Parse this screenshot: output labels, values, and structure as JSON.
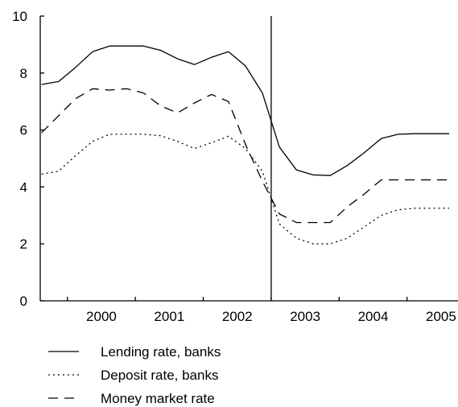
{
  "chart_data": {
    "type": "line",
    "title": "",
    "xlabel": "",
    "ylabel": "",
    "ylim": [
      0,
      10
    ],
    "yticks": [
      0,
      2,
      4,
      6,
      8,
      10
    ],
    "xlim": [
      1999.6,
      2005.75
    ],
    "xtick_labels": [
      "2000",
      "2001",
      "2002",
      "2003",
      "2004",
      "2005"
    ],
    "grid": false,
    "legend_position": "bottom",
    "reference_line_x": 2003.0,
    "series": [
      {
        "name": "Lending rate, banks",
        "style": "solid",
        "x": [
          1999.62,
          1999.87,
          2000.12,
          2000.37,
          2000.62,
          2000.87,
          2001.12,
          2001.37,
          2001.62,
          2001.87,
          2002.12,
          2002.37,
          2002.62,
          2002.87,
          2003.12,
          2003.37,
          2003.62,
          2003.87,
          2004.12,
          2004.37,
          2004.62,
          2004.87,
          2005.12,
          2005.37,
          2005.62
        ],
        "values": [
          7.6,
          7.7,
          8.2,
          8.75,
          8.95,
          8.95,
          8.95,
          8.8,
          8.5,
          8.3,
          8.55,
          8.75,
          8.25,
          7.3,
          5.4,
          4.6,
          4.42,
          4.4,
          4.75,
          5.2,
          5.7,
          5.85,
          5.87,
          5.87,
          5.87
        ]
      },
      {
        "name": "Deposit rate, banks",
        "style": "dotted",
        "x": [
          1999.62,
          1999.87,
          2000.12,
          2000.37,
          2000.62,
          2000.87,
          2001.12,
          2001.37,
          2001.62,
          2001.87,
          2002.12,
          2002.37,
          2002.62,
          2002.87,
          2003.12,
          2003.37,
          2003.62,
          2003.87,
          2004.12,
          2004.37,
          2004.62,
          2004.87,
          2005.12,
          2005.37,
          2005.62
        ],
        "values": [
          4.45,
          4.55,
          5.1,
          5.6,
          5.85,
          5.85,
          5.85,
          5.8,
          5.6,
          5.35,
          5.55,
          5.78,
          5.35,
          4.55,
          2.7,
          2.2,
          2.0,
          2.0,
          2.2,
          2.6,
          3.0,
          3.2,
          3.25,
          3.25,
          3.25
        ]
      },
      {
        "name": "Money market rate",
        "style": "dashed",
        "x": [
          1999.62,
          1999.87,
          2000.12,
          2000.37,
          2000.62,
          2000.87,
          2001.12,
          2001.37,
          2001.62,
          2001.87,
          2002.12,
          2002.37,
          2002.62,
          2002.87,
          2003.12,
          2003.37,
          2003.62,
          2003.87,
          2004.12,
          2004.37,
          2004.62,
          2004.87,
          2005.12,
          2005.37,
          2005.62
        ],
        "values": [
          5.9,
          6.5,
          7.1,
          7.45,
          7.4,
          7.45,
          7.3,
          6.85,
          6.6,
          6.95,
          7.25,
          7.0,
          5.5,
          4.2,
          3.05,
          2.75,
          2.75,
          2.75,
          3.3,
          3.75,
          4.25,
          4.25,
          4.25,
          4.25,
          4.25
        ]
      }
    ]
  }
}
